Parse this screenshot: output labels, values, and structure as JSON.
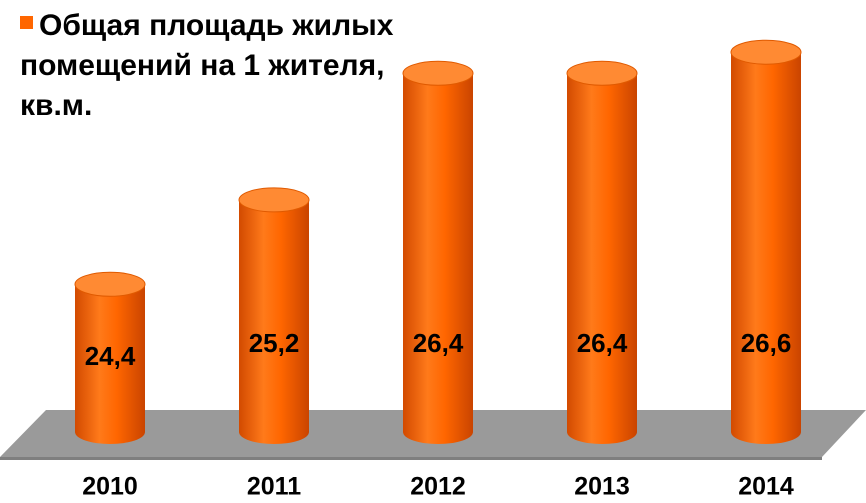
{
  "chart_data": {
    "type": "bar",
    "categories": [
      "2010",
      "2011",
      "2012",
      "2013",
      "2014"
    ],
    "series": [
      {
        "name": "Общая площадь жилых помещений на 1 жителя, кв.м.",
        "color": "#ff6600",
        "values": [
          24.4,
          25.2,
          26.4,
          26.4,
          26.6
        ],
        "value_labels": [
          "24,4",
          "25,2",
          "26,4",
          "26,4",
          "26,6"
        ]
      }
    ],
    "ylim": [
      23,
      27
    ],
    "legend": "top-left"
  }
}
